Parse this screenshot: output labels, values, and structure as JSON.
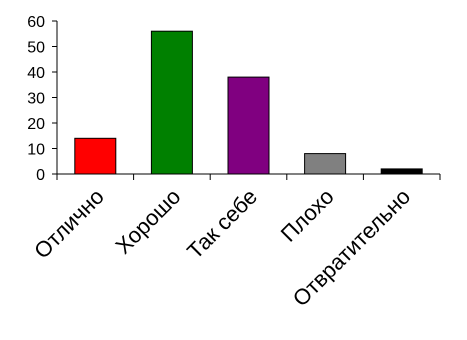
{
  "chart_data": {
    "type": "bar",
    "title": "",
    "xlabel": "",
    "ylabel": "",
    "ylim": [
      0,
      60
    ],
    "yticks": [
      0,
      10,
      20,
      30,
      40,
      50,
      60
    ],
    "grid": false,
    "legend": "none",
    "categories": [
      "Отлично",
      "Хорошо",
      "Так себе",
      "Плохо",
      "Отвратительно"
    ],
    "values": [
      14,
      56,
      38,
      8,
      2
    ],
    "colors": [
      "#ff0000",
      "#008000",
      "#800080",
      "#808080",
      "#000000"
    ]
  }
}
